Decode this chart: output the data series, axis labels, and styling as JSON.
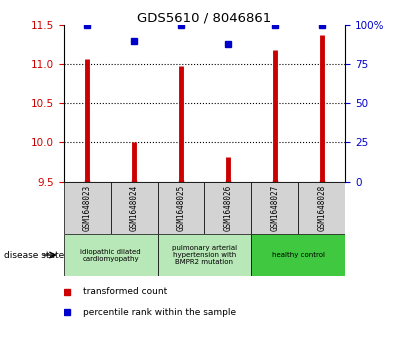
{
  "title": "GDS5610 / 8046861",
  "samples": [
    "GSM1648023",
    "GSM1648024",
    "GSM1648025",
    "GSM1648026",
    "GSM1648027",
    "GSM1648028"
  ],
  "red_values": [
    11.07,
    10.01,
    10.98,
    9.81,
    11.18,
    11.38
  ],
  "blue_values": [
    100,
    90,
    100,
    88,
    100,
    100
  ],
  "ylim_left": [
    9.5,
    11.5
  ],
  "ylim_right": [
    0,
    100
  ],
  "yticks_left": [
    9.5,
    10.0,
    10.5,
    11.0,
    11.5
  ],
  "yticks_right": [
    0,
    25,
    50,
    75,
    100
  ],
  "red_color": "#cc0000",
  "blue_color": "#0000cc",
  "bg_color": "#d3d3d3",
  "group1_color": "#b8e8b8",
  "group2_color": "#40c840",
  "label_red": "transformed count",
  "label_blue": "percentile rank within the sample",
  "disease_state_label": "disease state",
  "group_configs": [
    {
      "indices": [
        0,
        1
      ],
      "label": "idiopathic dilated\ncardiomyopathy"
    },
    {
      "indices": [
        2,
        3
      ],
      "label": "pulmonary arterial\nhypertension with\nBMPR2 mutation"
    },
    {
      "indices": [
        4,
        5
      ],
      "label": "healthy control"
    }
  ]
}
